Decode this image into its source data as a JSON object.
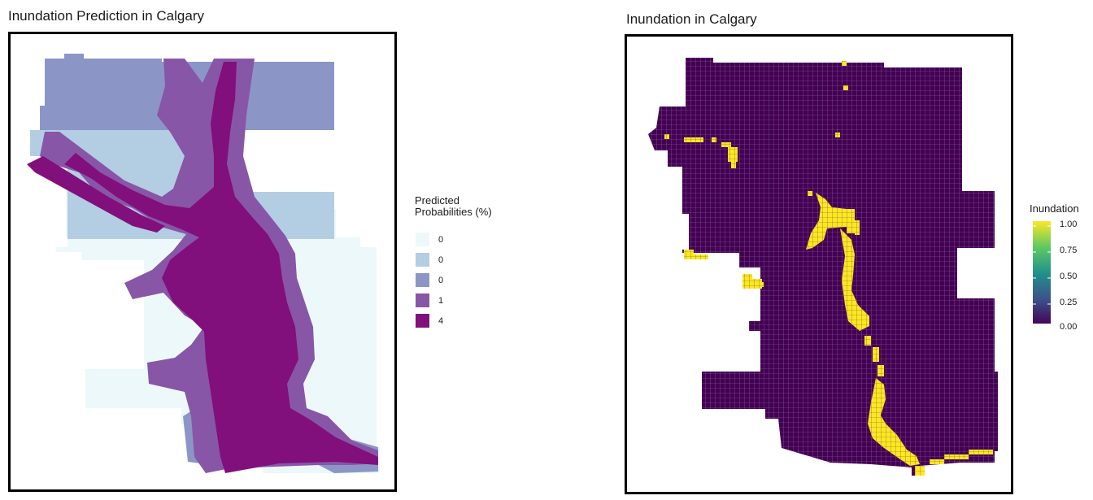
{
  "left_panel": {
    "title": "Inundation Prediction in Calgary",
    "legend": {
      "title_line1": "Predicted",
      "title_line2": "Probabilities (%)",
      "keys": [
        {
          "label": "0",
          "color": "#edf8fb"
        },
        {
          "label": "0",
          "color": "#b3cde3"
        },
        {
          "label": "0",
          "color": "#8c96c6"
        },
        {
          "label": "1",
          "color": "#8856a7"
        },
        {
          "label": "4",
          "color": "#810f7c"
        }
      ]
    }
  },
  "right_panel": {
    "title": "Inundation in Calgary",
    "legend": {
      "title": "Inundation",
      "ticks": [
        "1.00",
        "0.75",
        "0.50",
        "0.25",
        "0.00"
      ],
      "low_color": "#440154",
      "high_color": "#fde725"
    }
  }
}
